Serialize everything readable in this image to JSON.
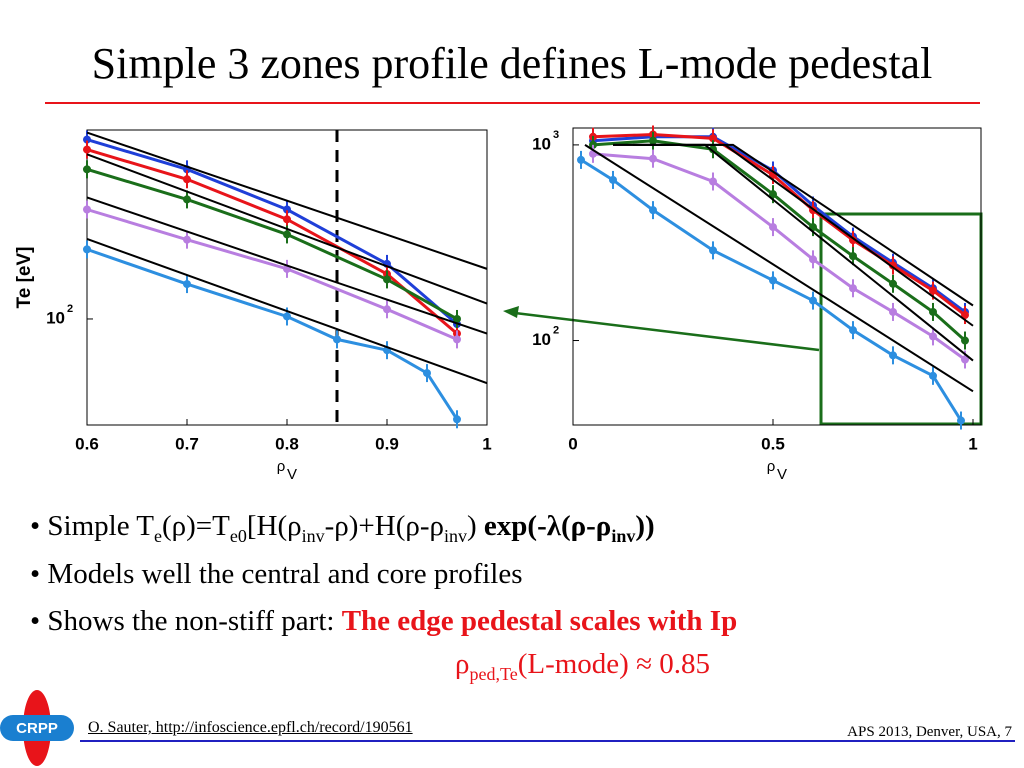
{
  "title": "Simple 3 zones profile defines L-mode pedestal",
  "chart_data": [
    {
      "type": "line",
      "log_y": true,
      "ylabel": "Te [eV]",
      "xlabel": {
        "text": "ρ",
        "sub": "V"
      },
      "xlim": [
        0.6,
        1.0
      ],
      "ylim": [
        43,
        450
      ],
      "xticks": [
        0.6,
        0.7,
        0.8,
        0.9,
        1
      ],
      "yticks": [
        {
          "value": 100,
          "label": "10",
          "exponent": "2"
        }
      ],
      "vline": 0.85,
      "series": [
        {
          "color": "#1f3fd8",
          "x": [
            0.6,
            0.7,
            0.8,
            0.9,
            0.97
          ],
          "values": [
            417,
            329,
            239,
            155,
            96
          ]
        },
        {
          "color": "#e8141a",
          "x": [
            0.6,
            0.7,
            0.8,
            0.9,
            0.97
          ],
          "values": [
            385,
            304,
            221,
            143,
            89
          ]
        },
        {
          "color": "#1a6e1a",
          "x": [
            0.6,
            0.7,
            0.8,
            0.9,
            0.97
          ],
          "values": [
            329,
            259,
            196,
            137,
            100
          ]
        },
        {
          "color": "#b87ee0",
          "x": [
            0.6,
            0.7,
            0.8,
            0.9,
            0.97
          ],
          "values": [
            239,
            188,
            149,
            108,
            85
          ]
        },
        {
          "color": "#2d8fe0",
          "x": [
            0.6,
            0.7,
            0.8,
            0.85,
            0.9,
            0.94,
            0.97
          ],
          "values": [
            174,
            132,
            102,
            85,
            78,
            65,
            45
          ]
        },
        {
          "color": "#000000",
          "x": [
            0.6,
            1.0
          ],
          "values": [
            441,
            149
          ]
        },
        {
          "color": "#000000",
          "x": [
            0.6,
            1.0
          ],
          "values": [
            371,
            113
          ]
        },
        {
          "color": "#000000",
          "x": [
            0.6,
            1.0
          ],
          "values": [
            263,
            89
          ]
        },
        {
          "color": "#000000",
          "x": [
            0.6,
            1.0
          ],
          "values": [
            189,
            60
          ]
        }
      ]
    },
    {
      "type": "line",
      "log_y": true,
      "xlabel": {
        "text": "ρ",
        "sub": "V"
      },
      "xlim": [
        0,
        1.02
      ],
      "ylim": [
        37,
        1220
      ],
      "xticks": [
        0,
        0.5,
        1
      ],
      "yticks": [
        {
          "value": 100,
          "label": "10",
          "exponent": "2"
        },
        {
          "value": 1000,
          "label": "10",
          "exponent": "3"
        }
      ],
      "series": [
        {
          "color": "#1f3fd8",
          "x": [
            0.05,
            0.2,
            0.35,
            0.5,
            0.6,
            0.7,
            0.8,
            0.9,
            0.98
          ],
          "values": [
            1050,
            1100,
            1100,
            740,
            490,
            340,
            250,
            185,
            140
          ]
        },
        {
          "color": "#e8141a",
          "x": [
            0.05,
            0.2,
            0.35,
            0.5,
            0.6,
            0.7,
            0.8,
            0.9,
            0.98
          ],
          "values": [
            1100,
            1130,
            1080,
            702,
            464,
            326,
            242,
            180,
            135
          ]
        },
        {
          "color": "#1a6e1a",
          "x": [
            0.05,
            0.2,
            0.35,
            0.5,
            0.6,
            0.7,
            0.8,
            0.9,
            0.98
          ],
          "values": [
            1000,
            1050,
            950,
            560,
            380,
            270,
            195,
            140,
            100
          ]
        },
        {
          "color": "#b87ee0",
          "x": [
            0.05,
            0.2,
            0.35,
            0.5,
            0.6,
            0.7,
            0.8,
            0.9,
            0.98
          ],
          "values": [
            900,
            850,
            650,
            380,
            260,
            185,
            140,
            105,
            80
          ]
        },
        {
          "color": "#2d8fe0",
          "x": [
            0.02,
            0.1,
            0.2,
            0.35,
            0.5,
            0.6,
            0.7,
            0.8,
            0.9,
            0.97
          ],
          "values": [
            838,
            662,
            464,
            289,
            203,
            160,
            113,
            84,
            66,
            39
          ]
        },
        {
          "color": "#000000",
          "x": [
            0.1,
            0.4,
            1.0
          ],
          "values": [
            1000,
            1000,
            151
          ]
        },
        {
          "color": "#000000",
          "x": [
            0.1,
            0.38,
            1.0
          ],
          "values": [
            1000,
            1000,
            119
          ]
        },
        {
          "color": "#000000",
          "x": [
            0.15,
            0.33,
            1.0
          ],
          "values": [
            1000,
            1000,
            79
          ]
        },
        {
          "color": "#000000",
          "x": [
            0.03,
            1.0
          ],
          "values": [
            1000,
            55
          ]
        }
      ]
    }
  ],
  "bullets": [
    [
      "• Simple T",
      "e",
      "(ρ)=T",
      "e0",
      "[H(ρ",
      "inv",
      "-ρ)+H(ρ-ρ",
      "inv",
      ") ",
      "exp(-λ(ρ-ρ",
      "inv",
      "))"
    ],
    [
      "• Models well the central and core profiles"
    ],
    [
      "• Shows the non-stiff part: ",
      "The edge pedestal scales with Ip"
    ]
  ],
  "note": [
    "ρ",
    "ped,Te",
    "(L-mode) ≈ 0.85"
  ],
  "logo": "CRPP",
  "footer": {
    "left": "O. Sauter, http://infoscience.epfl.ch/record/190561",
    "right": "APS 2013, Denver, USA, 7"
  }
}
